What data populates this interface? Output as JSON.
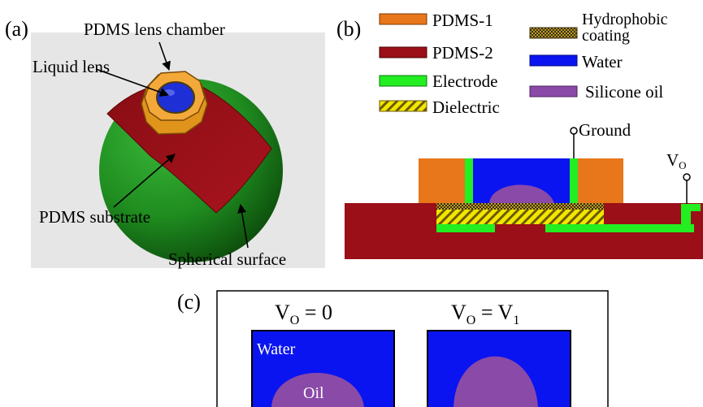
{
  "panels": {
    "a": {
      "tag": "(a)",
      "labels": {
        "chamber": "PDMS lens chamber",
        "lens": "Liquid lens",
        "substrate": "PDMS substrate",
        "sphere": "Spherical surface"
      }
    },
    "b": {
      "tag": "(b)",
      "legend": {
        "pdms1": "PDMS-1",
        "pdms2": "PDMS-2",
        "electrode": "Electrode",
        "dielectric": "Dielectric",
        "hydrophobic_line1": "Hydrophobic",
        "hydrophobic_line2": "coating",
        "water": "Water",
        "oil": "Silicone oil"
      },
      "ground": "Ground",
      "vo_main": "V",
      "vo_sub": "O"
    },
    "c": {
      "tag": "(c)",
      "left_title_main": "V",
      "left_title_sub": "O",
      "left_title_rest": " = 0",
      "right_title_main": "V",
      "right_title_sub": "O",
      "right_title_eq": " = V",
      "right_title_sub2": "1",
      "water_label": "Water",
      "oil_label": "Oil"
    }
  },
  "colors": {
    "pdms1": "#e8761a",
    "pdms2": "#9a0f18",
    "electrode": "#22ee22",
    "dielectric": "#f2e600",
    "hydrophobic": "#8a7a18",
    "water": "#0a14f0",
    "oil": "#8a4aa8",
    "sphere": "#1f8c1f",
    "panel_a_bg": "#e6e6e6"
  }
}
